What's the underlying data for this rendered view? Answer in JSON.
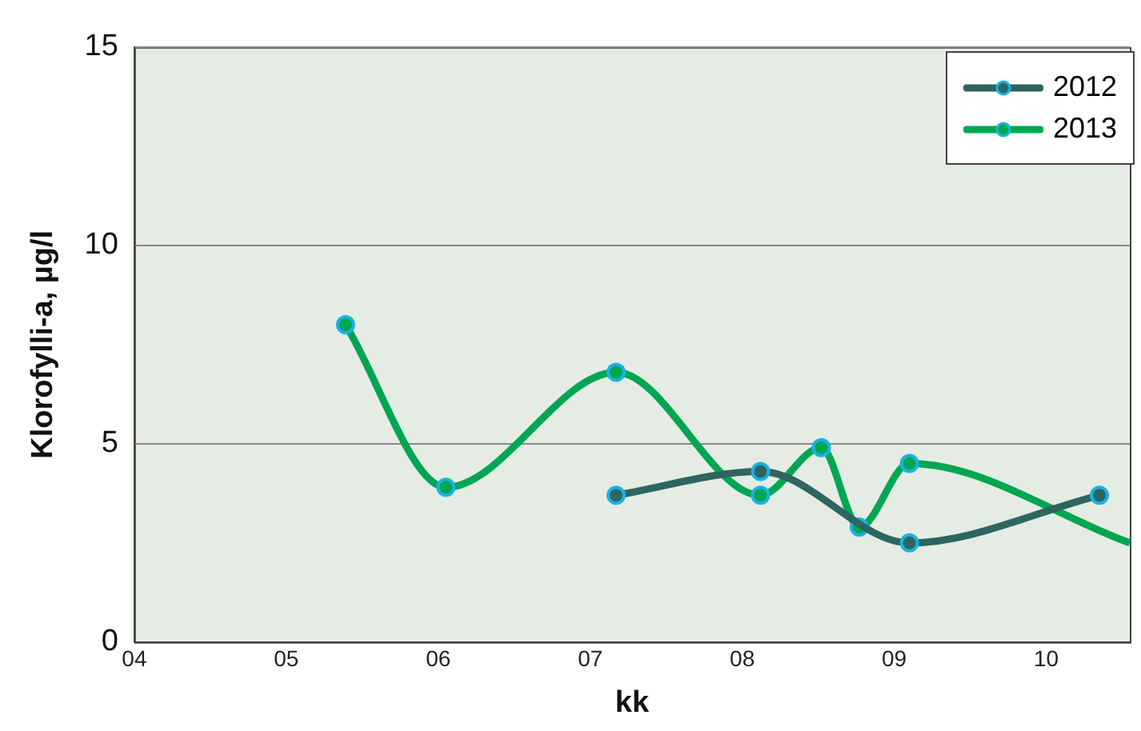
{
  "chart_data": {
    "type": "line",
    "xlabel": "kk",
    "ylabel": "Klorofylli-a, µg/l",
    "xlim": [
      4,
      10.55
    ],
    "xticks": [
      {
        "value": 4,
        "label": "04"
      },
      {
        "value": 5,
        "label": "05"
      },
      {
        "value": 6,
        "label": "06"
      },
      {
        "value": 7,
        "label": "07"
      },
      {
        "value": 8,
        "label": "08"
      },
      {
        "value": 9,
        "label": "09"
      },
      {
        "value": 10,
        "label": "10"
      }
    ],
    "ylim": [
      0,
      15
    ],
    "yticks": [
      0,
      5,
      10,
      15
    ],
    "grid": "y",
    "legend": "top right",
    "marker": "circle",
    "line_style": "solid",
    "series": [
      {
        "name": "2012",
        "color": "#2e6560",
        "x": [
          7.17,
          8.12,
          9.1,
          10.35
        ],
        "values": [
          3.7,
          4.3,
          2.5,
          3.7
        ]
      },
      {
        "name": "2013",
        "color": "#00a651",
        "x": [
          5.39,
          6.05,
          7.17,
          8.12,
          8.52,
          8.77,
          9.1,
          10.55
        ],
        "values": [
          8.0,
          3.9,
          6.8,
          3.7,
          4.9,
          2.9,
          4.5,
          2.5
        ]
      }
    ]
  }
}
